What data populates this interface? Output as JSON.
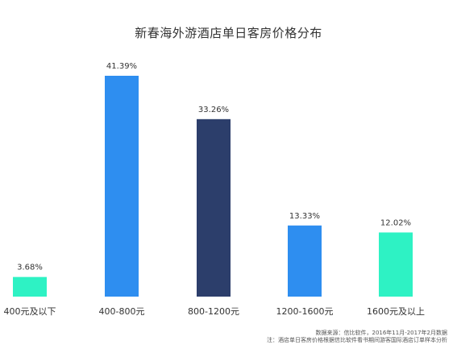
{
  "chart_data": {
    "type": "bar",
    "title": "新春海外游酒店单日客房价格分布",
    "categories": [
      "400元及以下",
      "400-800元",
      "800-1200元",
      "1200-1600元",
      "1600元及以上"
    ],
    "values": [
      3.68,
      41.39,
      33.26,
      13.33,
      12.02
    ],
    "value_labels": [
      "3.68%",
      "41.39%",
      "33.26%",
      "13.33%",
      "12.02%"
    ],
    "unit": "%",
    "bar_colors": [
      "#2ef2c4",
      "#2e8ef0",
      "#2c3e6b",
      "#2e8ef0",
      "#2ef2c4"
    ],
    "ylim": [
      0,
      41.39
    ],
    "grid": false,
    "legend": "none"
  },
  "footnotes": {
    "source": "数据来源：信比软件，2016年11月-2017年2月数据",
    "note": "注：酒店单日客房价格根据信比软件看书期间游客国际酒店订单样本分析"
  }
}
